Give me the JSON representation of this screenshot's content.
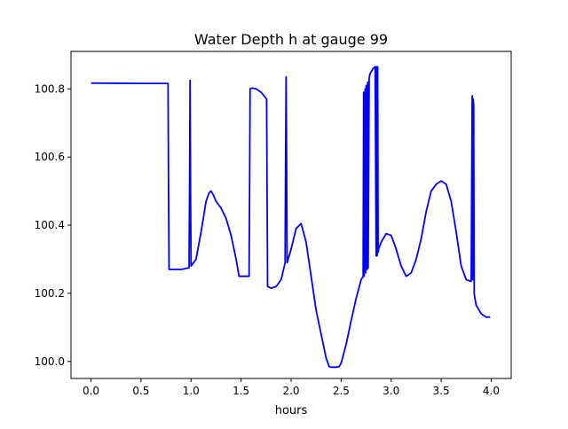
{
  "chart_data": {
    "type": "line",
    "title": "Water Depth h at gauge 99",
    "xlabel": "hours",
    "ylabel": "",
    "xlim": [
      -0.2,
      4.2
    ],
    "ylim": [
      99.95,
      100.91
    ],
    "xticks": [
      0.0,
      0.5,
      1.0,
      1.5,
      2.0,
      2.5,
      3.0,
      3.5,
      4.0
    ],
    "xtick_labels": [
      "0.0",
      "0.5",
      "1.0",
      "1.5",
      "2.0",
      "2.5",
      "3.0",
      "3.5",
      "4.0"
    ],
    "yticks": [
      100.0,
      100.2,
      100.4,
      100.6,
      100.8
    ],
    "ytick_labels": [
      "100.0",
      "100.2",
      "100.4",
      "100.6",
      "100.8"
    ],
    "grid": false,
    "color": "#0000ff",
    "series": [
      {
        "name": "",
        "x": [
          0.0,
          0.5,
          0.77,
          0.775,
          0.78,
          0.9,
          0.98,
          0.985,
          0.99,
          0.995,
          1.0,
          1.05,
          1.1,
          1.15,
          1.18,
          1.2,
          1.22,
          1.25,
          1.3,
          1.35,
          1.4,
          1.45,
          1.48,
          1.5,
          1.55,
          1.58,
          1.585,
          1.59,
          1.6,
          1.62,
          1.65,
          1.7,
          1.755,
          1.76,
          1.765,
          1.8,
          1.85,
          1.9,
          1.94,
          1.945,
          1.95,
          1.955,
          1.96,
          2.0,
          2.05,
          2.1,
          2.15,
          2.2,
          2.25,
          2.3,
          2.35,
          2.38,
          2.4,
          2.45,
          2.48,
          2.5,
          2.55,
          2.6,
          2.65,
          2.7,
          2.72,
          2.725,
          2.73,
          2.74,
          2.745,
          2.75,
          2.76,
          2.765,
          2.77,
          2.78,
          2.785,
          2.79,
          2.8,
          2.82,
          2.84,
          2.85,
          2.855,
          2.86,
          2.865,
          2.87,
          2.875,
          2.9,
          2.95,
          3.0,
          3.05,
          3.1,
          3.15,
          3.2,
          3.25,
          3.3,
          3.35,
          3.4,
          3.45,
          3.5,
          3.55,
          3.58,
          3.6,
          3.65,
          3.7,
          3.75,
          3.8,
          3.81,
          3.815,
          3.82,
          3.825,
          3.83,
          3.835,
          3.84,
          3.85,
          3.9,
          3.95,
          3.99
        ],
        "y": [
          100.817,
          100.816,
          100.816,
          100.5,
          100.27,
          100.27,
          100.275,
          100.5,
          100.825,
          100.5,
          100.28,
          100.3,
          100.38,
          100.47,
          100.495,
          100.5,
          100.49,
          100.47,
          100.45,
          100.42,
          100.37,
          100.3,
          100.25,
          100.25,
          100.25,
          100.25,
          100.5,
          100.8,
          100.802,
          100.802,
          100.8,
          100.79,
          100.77,
          100.5,
          100.22,
          100.215,
          100.22,
          100.24,
          100.29,
          100.6,
          100.835,
          100.6,
          100.29,
          100.33,
          100.39,
          100.405,
          100.35,
          100.25,
          100.15,
          100.08,
          100.01,
          99.985,
          99.983,
          99.983,
          99.985,
          99.995,
          100.05,
          100.12,
          100.185,
          100.24,
          100.25,
          100.79,
          100.25,
          100.8,
          100.26,
          100.81,
          100.27,
          100.82,
          100.275,
          100.83,
          100.84,
          100.845,
          100.85,
          100.86,
          100.865,
          100.31,
          100.865,
          100.31,
          100.865,
          100.32,
          100.33,
          100.35,
          100.375,
          100.37,
          100.33,
          100.28,
          100.25,
          100.26,
          100.3,
          100.36,
          100.44,
          100.5,
          100.52,
          100.53,
          100.52,
          100.49,
          100.47,
          100.38,
          100.28,
          100.24,
          100.235,
          100.78,
          100.24,
          100.77,
          100.75,
          100.2,
          100.19,
          100.18,
          100.165,
          100.14,
          100.13,
          100.13
        ]
      }
    ]
  }
}
